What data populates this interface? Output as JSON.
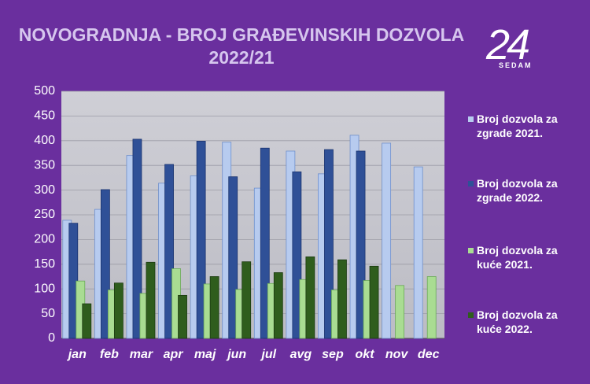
{
  "chart_data": {
    "type": "bar",
    "title": "NOVOGRADNJA - BROJ GRAĐEVINSKIH DOZVOLA 2022/21",
    "categories": [
      "jan",
      "feb",
      "mar",
      "apr",
      "maj",
      "jun",
      "jul",
      "avg",
      "sep",
      "okt",
      "nov",
      "dec"
    ],
    "series": [
      {
        "name": "Broj dozvola za zgrade 2021.",
        "color": "#b7cbef",
        "values": [
          239,
          261,
          370,
          314,
          329,
          397,
          304,
          379,
          333,
          411,
          395,
          347
        ]
      },
      {
        "name": "Broj dozvola za zgrade 2022.",
        "color": "#2f5097",
        "values": [
          233,
          301,
          403,
          352,
          399,
          327,
          385,
          337,
          382,
          379,
          null,
          null
        ]
      },
      {
        "name": "Broj dozvola za kuće 2021.",
        "color": "#a9dc92",
        "values": [
          116,
          98,
          91,
          141,
          110,
          99,
          111,
          119,
          98,
          117,
          107,
          125
        ]
      },
      {
        "name": "Broj dozvola za kuće 2022.",
        "color": "#2f5d1d",
        "values": [
          70,
          112,
          154,
          87,
          125,
          155,
          133,
          165,
          159,
          146,
          null,
          null
        ]
      }
    ],
    "ylim": [
      0,
      500
    ],
    "yticks": [
      0,
      50,
      100,
      150,
      200,
      250,
      300,
      350,
      400,
      450,
      500
    ],
    "grid": true,
    "legend": "right"
  },
  "logo": {
    "text": "24",
    "subtext": "SEDAM"
  }
}
